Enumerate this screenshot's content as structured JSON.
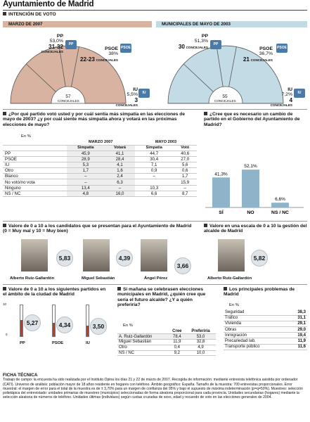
{
  "title": "Ayuntamiento de Madrid",
  "vote": {
    "section_title": "INTENCIÓN DE VOTO",
    "left": {
      "band": "MARZO DE 2007",
      "band_color": "#d9b3a2",
      "pp": {
        "name": "PP",
        "pct": "53,0%",
        "seats": "31-32",
        "unit": "CONCEJALES"
      },
      "psoe": {
        "name": "PSOE",
        "pct": "38%",
        "seats": "22-23",
        "unit": "CONCEJALES"
      },
      "iu": {
        "name": "IU",
        "pct": "5,5%",
        "seats": "3",
        "unit": "CONCEJALES"
      },
      "total": "57",
      "total_label": "CONCEJALES"
    },
    "right": {
      "band": "MUNICIPALES DE MAYO DE 2003",
      "band_color": "#c2dbe5",
      "pp": {
        "name": "PP",
        "pct": "51,3%",
        "seats": "30",
        "unit": "CONCEJALES"
      },
      "psoe": {
        "name": "PSOE",
        "pct": "36,7%",
        "seats": "21",
        "unit": "CONCEJALES"
      },
      "iu": {
        "name": "IU",
        "pct": "7,2%",
        "seats": "4",
        "unit": "CONCEJALES"
      },
      "total": "55",
      "total_label": "CONCEJALES"
    },
    "logos": {
      "pp": "PP",
      "psoe": "PSOE",
      "iu": "IU"
    }
  },
  "q1": {
    "question": "¿Por qué partido votó usted y por cuál sentía más simpatía en las elecciones de mayo de 2003? ¿y por cuál siente más simpatía ahora y votará en las próximas elecciones de mayo?",
    "unit": "En %",
    "group1": "MARZO 2007",
    "group2": "MAYO 2003",
    "cols": [
      "Simpatía",
      "Votará",
      "Simpatía",
      "Votó"
    ],
    "rows": [
      {
        "label": "PP",
        "v": [
          "45,9",
          "41,1",
          "44,7",
          "40,6"
        ]
      },
      {
        "label": "PSOE",
        "v": [
          "28,9",
          "28,4",
          "30,4",
          "27,0"
        ]
      },
      {
        "label": "IU",
        "v": [
          "5,3",
          "4,1",
          "7,1",
          "5,6"
        ]
      },
      {
        "label": "Otro",
        "v": [
          "1,7",
          "1,6",
          "0,9",
          "0,6"
        ]
      },
      {
        "label": "Blanco",
        "v": [
          "–",
          "2,4",
          "–",
          "1,7"
        ]
      },
      {
        "label": "No votó/no vota",
        "v": [
          "–",
          "6,3",
          "",
          "15,9"
        ]
      },
      {
        "label": "Ninguno",
        "v": [
          "13,4",
          "–",
          "10,3",
          "–"
        ]
      },
      {
        "label": "NS / NC",
        "v": [
          "4,8",
          "16,0",
          "6,6",
          "8,7"
        ]
      }
    ]
  },
  "q2": {
    "question": "¿Cree que es necesario un cambio de partido en el Gobierno del Ayuntamiento de Madrid?",
    "color": "#8fb4c9",
    "bars": [
      {
        "label": "SÍ",
        "value": "41,3%"
      },
      {
        "label": "NO",
        "value": "52,1%"
      },
      {
        "label": "NS / NC",
        "value": "6,6%"
      }
    ]
  },
  "chart_data": {
    "type": "bar",
    "categories": [
      "SÍ",
      "NO",
      "NS / NC"
    ],
    "values": [
      41.3,
      52.1,
      6.6
    ],
    "title": "¿Cree que es necesario un cambio de partido en el Gobierno del Ayuntamiento de Madrid?",
    "ylim": [
      0,
      60
    ]
  },
  "q3": {
    "question": "Valore de 0 a 10 a los candidatos que se presentan para el Ayuntamiento de Madrid (0 = Muy mal y 10 = Muy bien)",
    "candidates": [
      {
        "name": "Alberto Ruiz-Gallardón",
        "score": "5,83",
        "value": 5.83
      },
      {
        "name": "Miguel Sebastián",
        "score": "4,39",
        "value": 4.39
      },
      {
        "name": "Ángel Pérez",
        "score": "3,66",
        "value": 3.66
      }
    ]
  },
  "q4": {
    "question": "Valore en una escala de 0 a 10 la gestión del alcalde de Madrid",
    "name": "Alberto Ruiz-Gallardón",
    "score": "5,82",
    "value": 5.82
  },
  "q5": {
    "question": "Valore de 0 a 10 a los siguientes partidos en el ámbito de la ciudad de Madrid",
    "parties": [
      {
        "name": "PP",
        "score": "5,27",
        "value": 5.27
      },
      {
        "name": "PSOE",
        "score": "4,34",
        "value": 4.34
      },
      {
        "name": "IU",
        "score": "3,50",
        "value": 3.5
      }
    ]
  },
  "q6": {
    "question": "Si mañana se celebrasen elecciones municipales en Madrid, ¿quién cree que sería el futuro alcalde? ¿Y a quién preferiría?",
    "unit": "En %",
    "cols": [
      "Cree",
      "Preferiría"
    ],
    "rows": [
      {
        "label": "A. Ruiz-Gallardón",
        "v": [
          "78,4",
          "53,0"
        ]
      },
      {
        "label": "Miguel Sebastián",
        "v": [
          "11,9",
          "32,8"
        ]
      },
      {
        "label": "Otro",
        "v": [
          "0,4",
          "4,9"
        ]
      },
      {
        "label": "NS / NC",
        "v": [
          "9,2",
          "10,0"
        ]
      }
    ]
  },
  "q7": {
    "question": "Los principales problemas de Madrid",
    "unit": "En %",
    "rows": [
      {
        "label": "Seguridad",
        "v": "38,3"
      },
      {
        "label": "Tráfico",
        "v": "31,1"
      },
      {
        "label": "Vivienda",
        "v": "29,1"
      },
      {
        "label": "Obras",
        "v": "29,0"
      },
      {
        "label": "Inmigración",
        "v": "19,4"
      },
      {
        "label": "Precariedad lab.",
        "v": "11,9"
      },
      {
        "label": "Transporte público",
        "v": "11,6"
      }
    ]
  },
  "ficha": {
    "title": "FICHA TÉCNICA",
    "text": "Trabajo de campo: la encuesta ha sido realizada por el Instituto Opina los días 21 y 22 de marzo de 2007. Recogida de información: mediante entrevista telefónica asistida por ordenador (CATI). Universo de análisis: población mayor de 18 años residente en hogares con teléfono. Ámbito geográfico: España. Tamaño de la muestra: 700 entrevistas proporcionales. Error muestral: el margen de error para el total de la muestra es de ± 3,70% para un margen de confianza del 95% y bajo el supuesto de máxima indeterminación (p=q=50%). Muestreo: selección polietápica del entrevistado: unidades primarias de muestreo (municipios) seleccionadas de forma aleatoria proporcional para cada provincia. Unidades secundarias (hogares) mediante la selección aleatoria de números de teléfono. Unidades últimas (individuos) según cuotas cruzadas de sexo, edad y recuerdo de voto en las elecciones generales de 2004."
  }
}
